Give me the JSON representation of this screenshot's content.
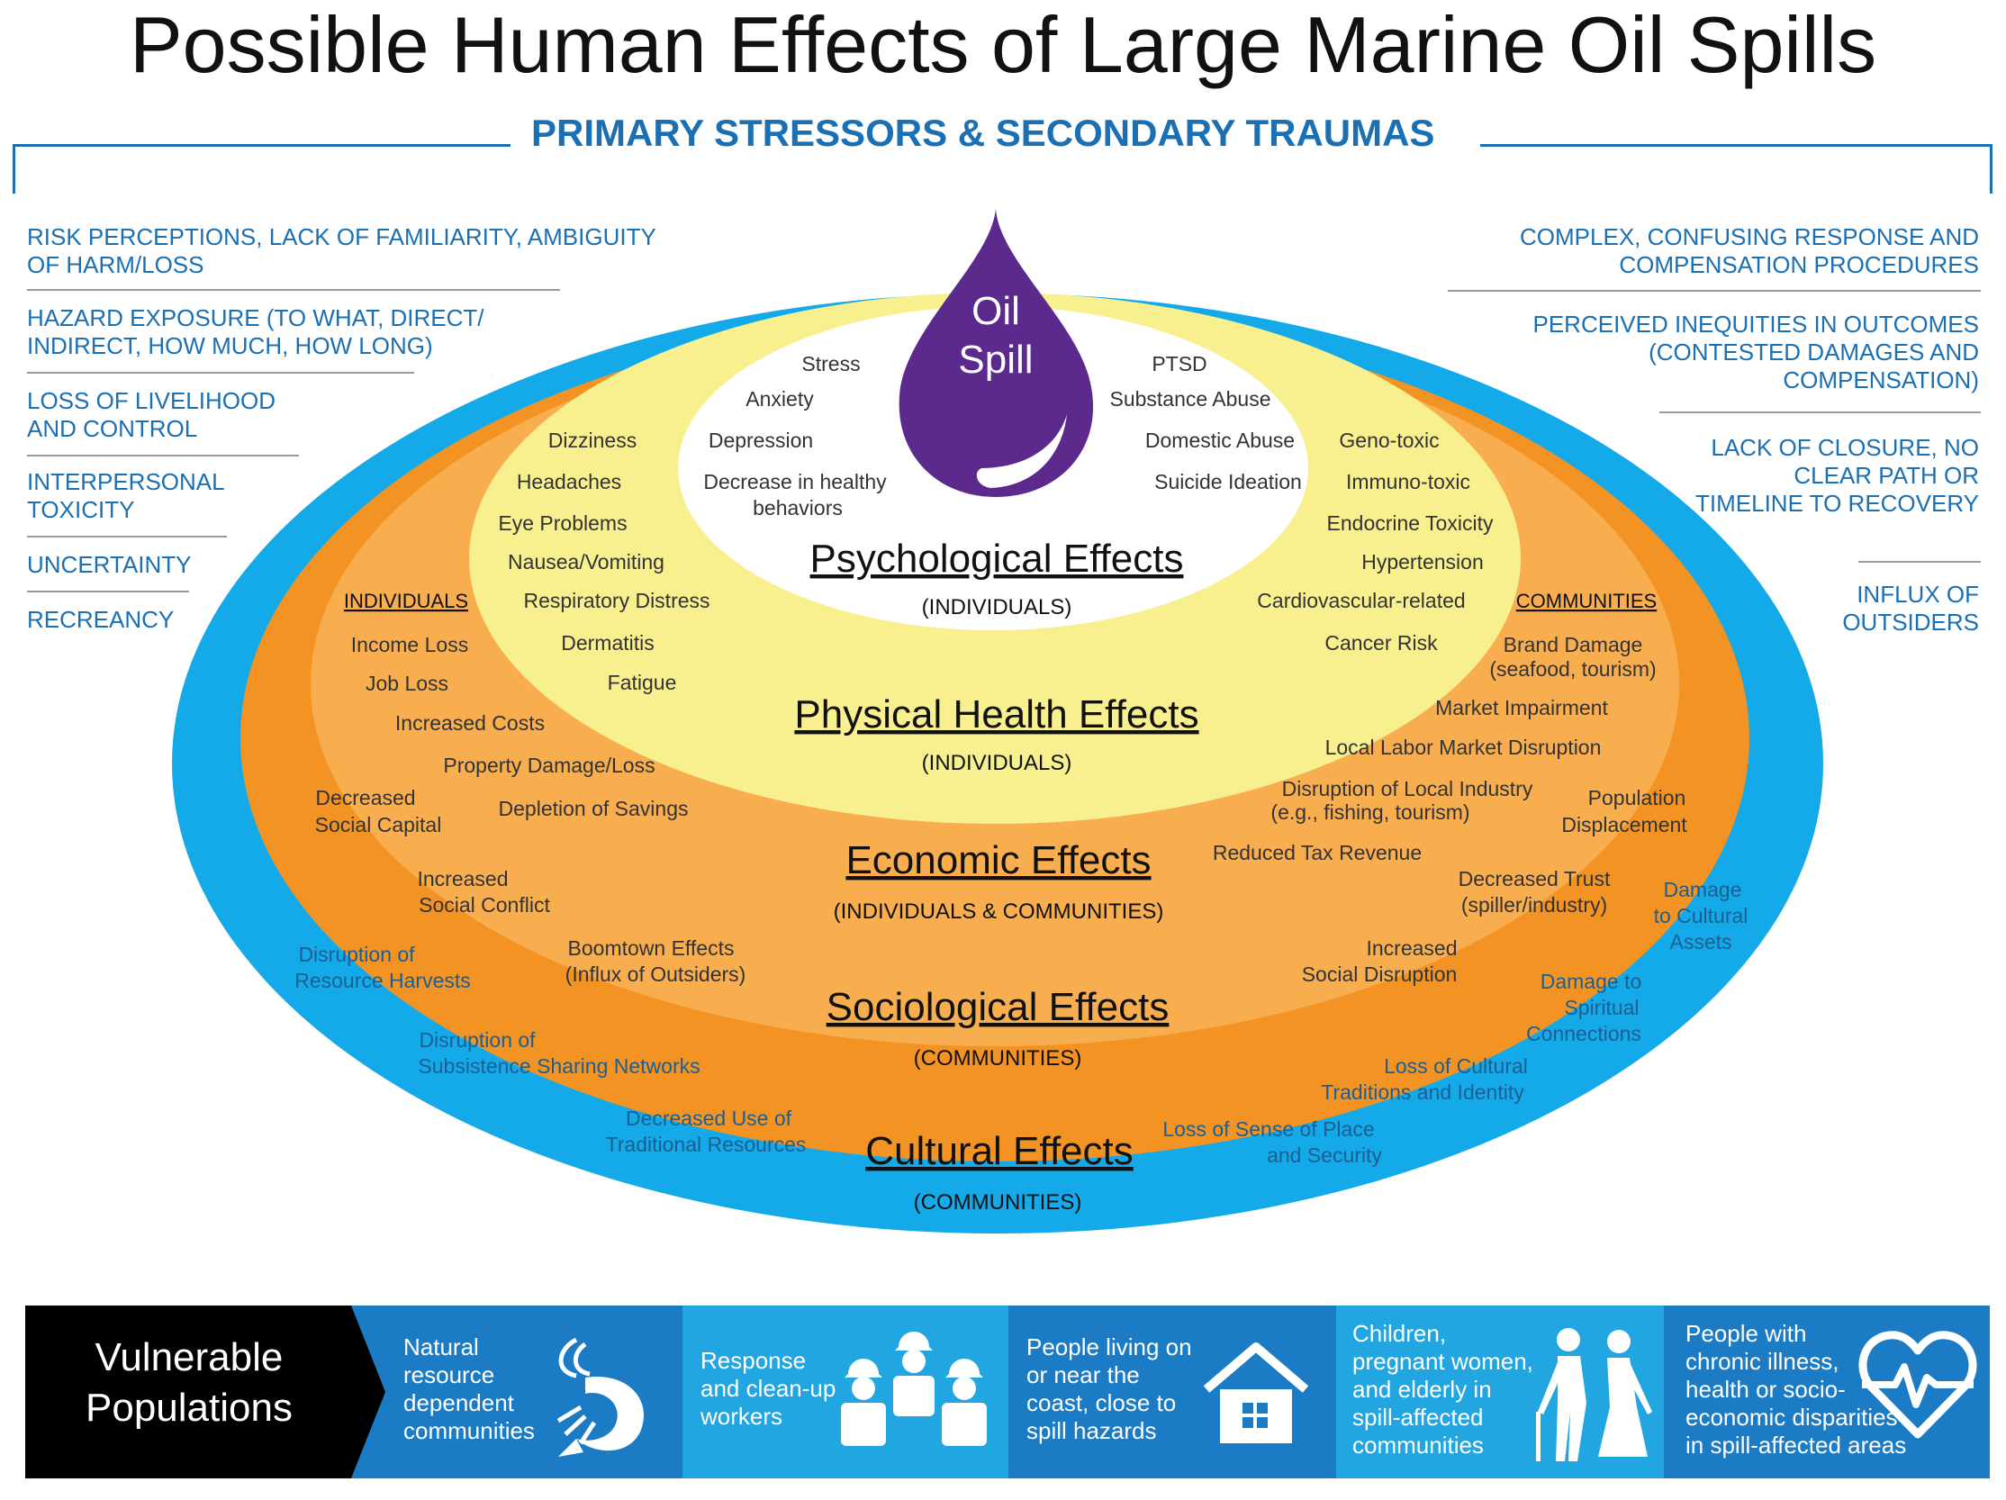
{
  "title": "Possible Human Effects of Large Marine Oil Spills",
  "subtitle": "PRIMARY STRESSORS & SECONDARY TRAUMAS",
  "colors": {
    "accent_blue": "#1b6fb3",
    "outer_ring": "#14a9e8",
    "sociological_ring": "#f39323",
    "economic_ring": "#f8ae4e",
    "physical_ring": "#f8f08f",
    "psychological_core": "#ffffff",
    "oil_drop": "#5b2a8c"
  },
  "stressors_left": [
    "RISK PERCEPTIONS, LACK OF FAMILIARITY, AMBIGUITY OF HARM/LOSS",
    "HAZARD EXPOSURE (TO WHAT, DIRECT/ INDIRECT, HOW MUCH, HOW LONG)",
    "LOSS OF  LIVELIHOOD AND CONTROL",
    "INTERPERSONAL TOXICITY",
    "UNCERTAINTY",
    "RECREANCY"
  ],
  "stressors_right": [
    "COMPLEX, CONFUSING RESPONSE AND COMPENSATION PROCEDURES",
    "PERCEIVED INEQUITIES IN OUTCOMES (CONTESTED DAMAGES AND COMPENSATION)",
    "LACK OF CLOSURE, NO CLEAR PATH OR TIMELINE TO RECOVERY",
    "INFLUX OF OUTSIDERS"
  ],
  "oil_spill": {
    "line1": "Oil",
    "line2": "Spill"
  },
  "psychological": {
    "heading": "Psychological Effects",
    "scope": "(INDIVIDUALS)",
    "items_left": [
      "Stress",
      "Anxiety",
      "Depression",
      "Decrease in healthy",
      "behaviors"
    ],
    "items_right": [
      "PTSD",
      "Substance Abuse",
      "Domestic Abuse",
      "Suicide Ideation"
    ]
  },
  "physical": {
    "heading": "Physical Health Effects",
    "scope": "(INDIVIDUALS)",
    "items_left": [
      "Dizziness",
      "Headaches",
      "Eye Problems",
      "Nausea/Vomiting",
      "Respiratory Distress",
      "Dermatitis",
      "Fatigue"
    ],
    "items_right": [
      "Geno-toxic",
      "Immuno-toxic",
      "Endocrine Toxicity",
      "Hypertension",
      "Cardiovascular-related",
      "Cancer Risk"
    ]
  },
  "economic": {
    "heading": "Economic Effects",
    "scope": "(INDIVIDUALS & COMMUNITIES)",
    "individuals_label": "INDIVIDUALS",
    "communities_label": "COMMUNITIES",
    "items_left": [
      "Income Loss",
      "Job Loss",
      "Increased Costs",
      "Property Damage/Loss",
      "Depletion of Savings"
    ],
    "items_right": [
      "Brand Damage",
      "(seafood, tourism)",
      "Market Impairment",
      "Local Labor Market Disruption",
      "Disruption of Local Industry",
      "(e.g., fishing, tourism)",
      "Reduced Tax Revenue"
    ]
  },
  "sociological": {
    "heading": "Sociological Effects",
    "scope": "(COMMUNITIES)",
    "items": [
      "Decreased",
      "Social Capital",
      "Increased",
      "Social Conflict",
      "Boomtown Effects",
      "(Influx of Outsiders)",
      "Population",
      "Displacement",
      "Decreased Trust",
      "(spiller/industry)",
      "Increased",
      "Social Disruption"
    ]
  },
  "cultural": {
    "heading": "Cultural Effects",
    "scope": "(COMMUNITIES)",
    "items": [
      "Disruption of",
      "Resource Harvests",
      "Disruption of",
      "Subsistence Sharing Networks",
      "Decreased Use of",
      "Traditional Resources",
      "Damage",
      "to Cultural",
      "Assets",
      "Damage to",
      "Spiritual",
      "Connections",
      "Loss of Cultural",
      "Traditions and Identity",
      "Loss of Sense of Place",
      "and Security"
    ]
  },
  "vulnerable": {
    "label_line1": "Vulnerable",
    "label_line2": "Populations",
    "groups": [
      {
        "text": [
          "Natural",
          "resource",
          "dependent",
          "communities"
        ],
        "icon": "shrimp-icon",
        "color": "#1b7bc4"
      },
      {
        "text": [
          "Response",
          "and clean-up",
          "workers"
        ],
        "icon": "workers-icon",
        "color": "#22a6e2"
      },
      {
        "text": [
          "People living on",
          "or near the",
          "coast, close to",
          "spill hazards"
        ],
        "icon": "house-icon",
        "color": "#1b7bc4"
      },
      {
        "text": [
          "Children,",
          "pregnant women,",
          "and elderly in",
          "spill-affected",
          "communities"
        ],
        "icon": "elderly-couple-icon",
        "color": "#22a6e2"
      },
      {
        "text": [
          "People with",
          "chronic illness,",
          "health or socio-",
          "economic disparities",
          "in spill-affected areas"
        ],
        "icon": "heartbeat-icon",
        "color": "#1b7bc4"
      }
    ]
  }
}
